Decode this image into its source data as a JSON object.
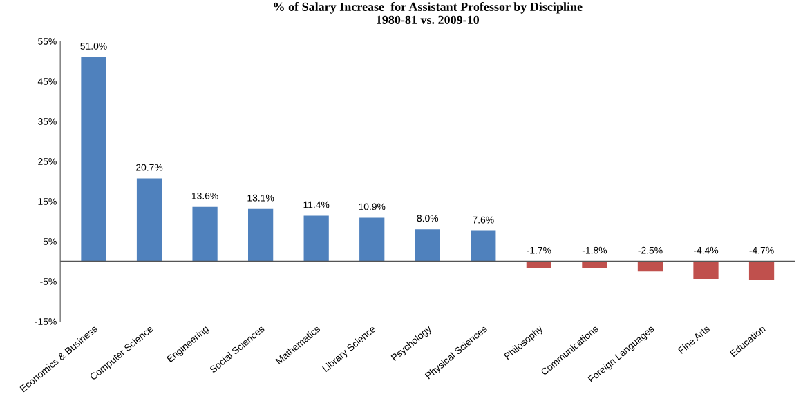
{
  "chart_data": {
    "type": "bar",
    "title": "% of Salary Increase  for Assistant Professor by Discipline\n1980-81 vs. 2009-10",
    "categories": [
      "Economics & Business",
      "Computer Science",
      "Engineering",
      "Social Sciences",
      "Mathematics",
      "Library Science",
      "Psychology",
      "Physical Sciences",
      "Philosophy",
      "Communications",
      "Foreign Languages",
      "Fine Arts",
      "Education"
    ],
    "values": [
      51.0,
      20.7,
      13.6,
      13.1,
      11.4,
      10.9,
      8.0,
      7.6,
      -1.7,
      -1.8,
      -2.5,
      -4.4,
      -4.7
    ],
    "colors": [
      "#4f81bd",
      "#4f81bd",
      "#4f81bd",
      "#4f81bd",
      "#4f81bd",
      "#4f81bd",
      "#4f81bd",
      "#4f81bd",
      "#c0504d",
      "#c0504d",
      "#c0504d",
      "#c0504d",
      "#c0504d"
    ],
    "value_labels": [
      "51.0%",
      "20.7%",
      "13.6%",
      "13.1%",
      "11.4%",
      "10.9%",
      "8.0%",
      "7.6%",
      "-1.7%",
      "-1.8%",
      "-2.5%",
      "-4.4%",
      "-4.7%"
    ],
    "ylim": [
      -15,
      55
    ],
    "yticks": [
      {
        "value": -15,
        "label": "-15%"
      },
      {
        "value": -5,
        "label": "-5%"
      },
      {
        "value": 5,
        "label": "5%"
      },
      {
        "value": 15,
        "label": "15%"
      },
      {
        "value": 25,
        "label": "25%"
      },
      {
        "value": 35,
        "label": "35%"
      },
      {
        "value": 45,
        "label": "45%"
      },
      {
        "value": 55,
        "label": "55%"
      }
    ],
    "grid": false,
    "legend": false
  }
}
